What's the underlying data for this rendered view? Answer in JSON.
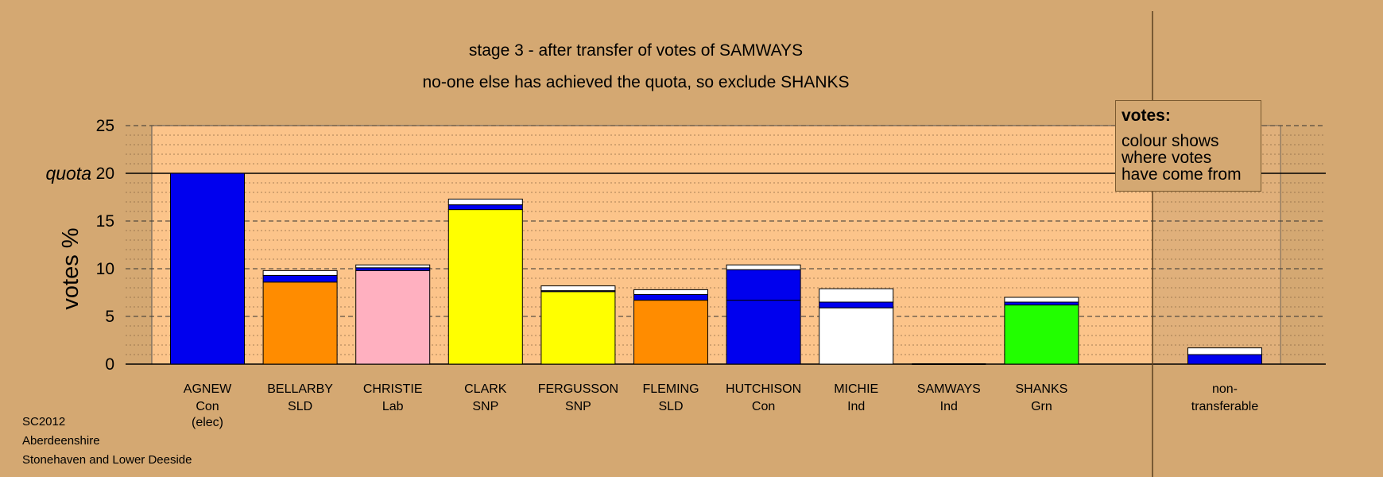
{
  "title": "stage 3 - after transfer of votes of SAMWAYS",
  "subtitle": "no-one else has achieved the quota, so exclude SHANKS",
  "footer": [
    "SC2012",
    "Aberdeenshire",
    "Stonehaven and Lower Deeside"
  ],
  "legend": {
    "title": "votes:",
    "lines": [
      "colour shows",
      "where votes",
      "have come from"
    ]
  },
  "colors": {
    "background": "#d4a872",
    "plot": "#fcc48a",
    "Con": "#0000ee",
    "SLD": "#ff8c00",
    "Lab": "#ffb0c0",
    "SNP": "#ffff00",
    "Ind": "#ffffff",
    "Grn": "#22ff00"
  },
  "chart_data": {
    "type": "bar",
    "stacked": true,
    "ylabel": "votes %",
    "ylim": [
      0,
      25
    ],
    "yticks": [
      0,
      5,
      10,
      15,
      20,
      25
    ],
    "quota": 20,
    "quota_label": "quota",
    "grid": true,
    "categories": [
      {
        "name": "AGNEW",
        "party": "Con",
        "note": "(elec)",
        "segments": [
          {
            "source": "Con",
            "value": 20.0
          }
        ]
      },
      {
        "name": "BELLARBY",
        "party": "SLD",
        "segments": [
          {
            "source": "SLD",
            "value": 8.6
          },
          {
            "source": "Con",
            "value": 0.7
          },
          {
            "source": "Ind",
            "value": 0.5
          }
        ]
      },
      {
        "name": "CHRISTIE",
        "party": "Lab",
        "segments": [
          {
            "source": "Lab",
            "value": 9.8
          },
          {
            "source": "Con",
            "value": 0.3
          },
          {
            "source": "Ind",
            "value": 0.3
          }
        ]
      },
      {
        "name": "CLARK",
        "party": "SNP",
        "segments": [
          {
            "source": "SNP",
            "value": 16.2
          },
          {
            "source": "Con",
            "value": 0.5
          },
          {
            "source": "Ind",
            "value": 0.6
          }
        ]
      },
      {
        "name": "FERGUSSON",
        "party": "SNP",
        "segments": [
          {
            "source": "SNP",
            "value": 7.6
          },
          {
            "source": "Con",
            "value": 0.1
          },
          {
            "source": "Ind",
            "value": 0.5
          }
        ]
      },
      {
        "name": "FLEMING",
        "party": "SLD",
        "segments": [
          {
            "source": "SLD",
            "value": 6.7
          },
          {
            "source": "Con",
            "value": 0.6
          },
          {
            "source": "Ind",
            "value": 0.5
          }
        ]
      },
      {
        "name": "HUTCHISON",
        "party": "Con",
        "segments": [
          {
            "source": "Con",
            "value": 6.7
          },
          {
            "source": "Con",
            "value": 3.2
          },
          {
            "source": "Ind",
            "value": 0.5
          }
        ]
      },
      {
        "name": "MICHIE",
        "party": "Ind",
        "segments": [
          {
            "source": "Ind",
            "value": 5.9
          },
          {
            "source": "Con",
            "value": 0.6
          },
          {
            "source": "Ind",
            "value": 1.4
          }
        ]
      },
      {
        "name": "SAMWAYS",
        "party": "Ind",
        "segments": [
          {
            "source": "Ind",
            "value": 0.0
          }
        ]
      },
      {
        "name": "SHANKS",
        "party": "Grn",
        "segments": [
          {
            "source": "Grn",
            "value": 6.2
          },
          {
            "source": "Con",
            "value": 0.3
          },
          {
            "source": "Ind",
            "value": 0.5
          }
        ]
      }
    ],
    "nontransferable": {
      "name": "non-",
      "name2": "transferable",
      "segments": [
        {
          "source": "Con",
          "value": 1.0
        },
        {
          "source": "Ind",
          "value": 0.7
        }
      ]
    }
  }
}
